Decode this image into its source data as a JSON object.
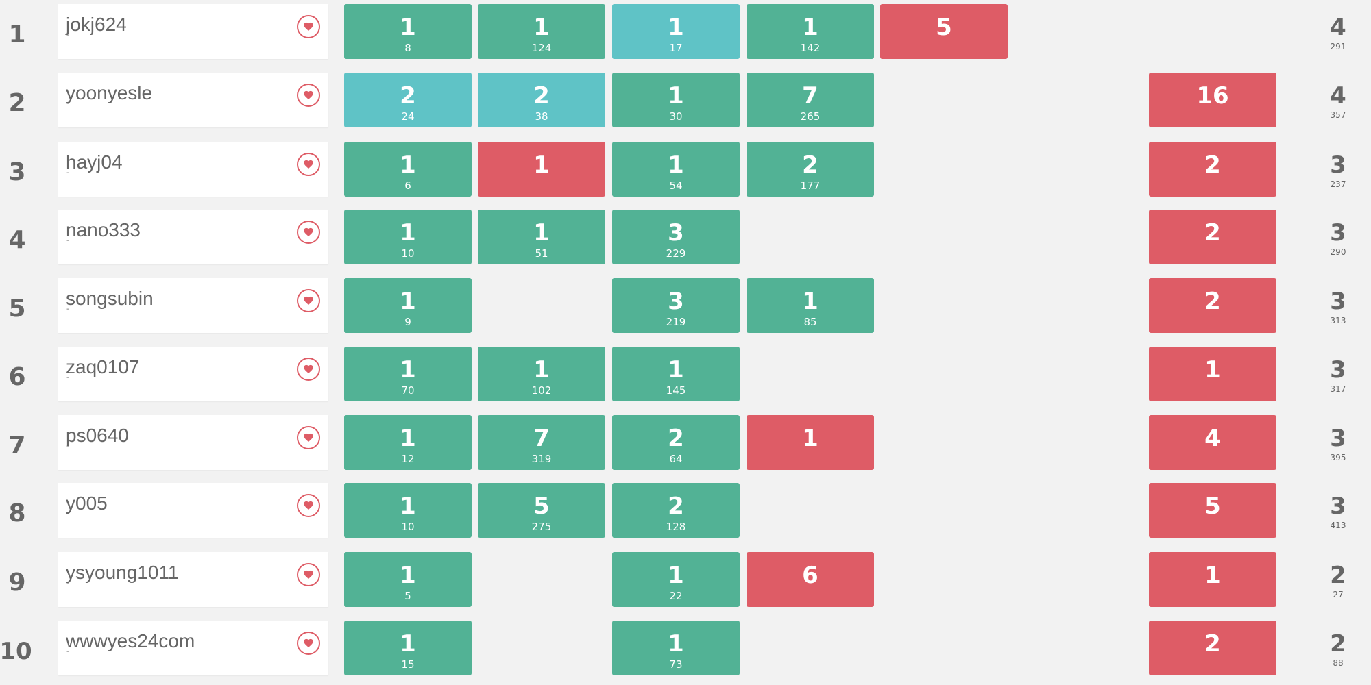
{
  "colors": {
    "background": "#f2f2f2",
    "solved": "#52b295",
    "first_solve": "#5fc3c6",
    "failed": "#de5c66",
    "heart": "#de5c66"
  },
  "icons": {
    "favorite": "heart-icon"
  },
  "rows": [
    {
      "rank": "1",
      "user": "jokj624",
      "sub": "-",
      "solved": "4",
      "penalty": "291",
      "problems": [
        {
          "state": "solved",
          "tries": "1",
          "time": "8"
        },
        {
          "state": "solved",
          "tries": "1",
          "time": "124"
        },
        {
          "state": "first",
          "tries": "1",
          "time": "17"
        },
        {
          "state": "solved",
          "tries": "1",
          "time": "142"
        },
        {
          "state": "failed",
          "tries": "5",
          "time": ""
        },
        null,
        null
      ]
    },
    {
      "rank": "2",
      "user": "yoonyesle",
      "sub": "-",
      "solved": "4",
      "penalty": "357",
      "problems": [
        {
          "state": "first",
          "tries": "2",
          "time": "24"
        },
        {
          "state": "first",
          "tries": "2",
          "time": "38"
        },
        {
          "state": "solved",
          "tries": "1",
          "time": "30"
        },
        {
          "state": "solved",
          "tries": "7",
          "time": "265"
        },
        null,
        null,
        {
          "state": "failed",
          "tries": "16",
          "time": ""
        }
      ]
    },
    {
      "rank": "3",
      "user": "hayj04",
      "sub": "-",
      "solved": "3",
      "penalty": "237",
      "problems": [
        {
          "state": "solved",
          "tries": "1",
          "time": "6"
        },
        {
          "state": "failed",
          "tries": "1",
          "time": ""
        },
        {
          "state": "solved",
          "tries": "1",
          "time": "54"
        },
        {
          "state": "solved",
          "tries": "2",
          "time": "177"
        },
        null,
        null,
        {
          "state": "failed",
          "tries": "2",
          "time": ""
        }
      ]
    },
    {
      "rank": "4",
      "user": "nano333",
      "sub": "-",
      "solved": "3",
      "penalty": "290",
      "problems": [
        {
          "state": "solved",
          "tries": "1",
          "time": "10"
        },
        {
          "state": "solved",
          "tries": "1",
          "time": "51"
        },
        {
          "state": "solved",
          "tries": "3",
          "time": "229"
        },
        null,
        null,
        null,
        {
          "state": "failed",
          "tries": "2",
          "time": ""
        }
      ]
    },
    {
      "rank": "5",
      "user": "songsubin",
      "sub": "-",
      "solved": "3",
      "penalty": "313",
      "problems": [
        {
          "state": "solved",
          "tries": "1",
          "time": "9"
        },
        null,
        {
          "state": "solved",
          "tries": "3",
          "time": "219"
        },
        {
          "state": "solved",
          "tries": "1",
          "time": "85"
        },
        null,
        null,
        {
          "state": "failed",
          "tries": "2",
          "time": ""
        }
      ]
    },
    {
      "rank": "6",
      "user": "zaq0107",
      "sub": "-",
      "solved": "3",
      "penalty": "317",
      "problems": [
        {
          "state": "solved",
          "tries": "1",
          "time": "70"
        },
        {
          "state": "solved",
          "tries": "1",
          "time": "102"
        },
        {
          "state": "solved",
          "tries": "1",
          "time": "145"
        },
        null,
        null,
        null,
        {
          "state": "failed",
          "tries": "1",
          "time": ""
        }
      ]
    },
    {
      "rank": "7",
      "user": "ps0640",
      "sub": "-",
      "solved": "3",
      "penalty": "395",
      "problems": [
        {
          "state": "solved",
          "tries": "1",
          "time": "12"
        },
        {
          "state": "solved",
          "tries": "7",
          "time": "319"
        },
        {
          "state": "solved",
          "tries": "2",
          "time": "64"
        },
        {
          "state": "failed",
          "tries": "1",
          "time": ""
        },
        null,
        null,
        {
          "state": "failed",
          "tries": "4",
          "time": ""
        }
      ]
    },
    {
      "rank": "8",
      "user": "y005",
      "sub": "-",
      "solved": "3",
      "penalty": "413",
      "problems": [
        {
          "state": "solved",
          "tries": "1",
          "time": "10"
        },
        {
          "state": "solved",
          "tries": "5",
          "time": "275"
        },
        {
          "state": "solved",
          "tries": "2",
          "time": "128"
        },
        null,
        null,
        null,
        {
          "state": "failed",
          "tries": "5",
          "time": ""
        }
      ]
    },
    {
      "rank": "9",
      "user": "ysyoung1011",
      "sub": "-",
      "solved": "2",
      "penalty": "27",
      "problems": [
        {
          "state": "solved",
          "tries": "1",
          "time": "5"
        },
        null,
        {
          "state": "solved",
          "tries": "1",
          "time": "22"
        },
        {
          "state": "failed",
          "tries": "6",
          "time": ""
        },
        null,
        null,
        {
          "state": "failed",
          "tries": "1",
          "time": ""
        }
      ]
    },
    {
      "rank": "10",
      "user": "wwwyes24com",
      "sub": "-",
      "solved": "2",
      "penalty": "88",
      "problems": [
        {
          "state": "solved",
          "tries": "1",
          "time": "15"
        },
        null,
        {
          "state": "solved",
          "tries": "1",
          "time": "73"
        },
        null,
        null,
        null,
        {
          "state": "failed",
          "tries": "2",
          "time": ""
        }
      ]
    }
  ]
}
